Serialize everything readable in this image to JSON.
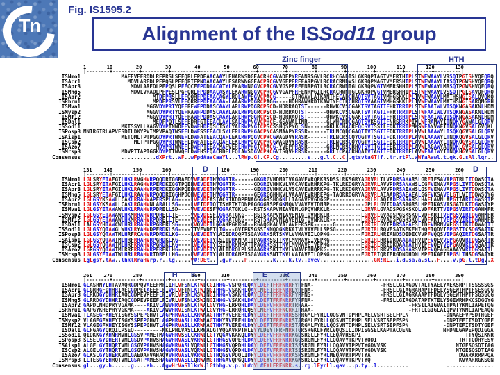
{
  "header": {
    "fig_label": "Fig. IS1595.2",
    "title_prefix": "Alignment of the IS",
    "title_italic": "Sod11",
    "title_suffix": " group",
    "logo_c": "C",
    "logo_tn": "Tn"
  },
  "colors": {
    "navy": "#283593",
    "high_consensus_red": "#e60d0d",
    "low_consensus_blue": "#1414dd",
    "neutral_black": "#1a1a1a",
    "logo_blue": "#4d78b7"
  },
  "alignment": {
    "names": [
      "ISNmo1",
      "ISAcr1",
      "ISApr3",
      "ISMng5",
      "ISApr2",
      "ISRhru1",
      "ISMva1",
      "ISMysp2",
      "ISMf12",
      "ISDal1",
      "ISSod11",
      "ISPosp3",
      "ISAisp1",
      "ISCsp2",
      "ISAzo7",
      "ISMrsp3",
      "Consensus"
    ],
    "blocks": [
      {
        "start": 1,
        "end": 130,
        "seg_widths": [
          55,
          75
        ],
        "seg_pads": [
          " ",
          "-"
        ],
        "first_seg_right_aligned": true,
        "boxes": [
          {
            "label": "Zinc finger",
            "from": 56,
            "to": 83,
            "placement": "outside"
          },
          {
            "label": "HTH",
            "from": 107,
            "to": 130,
            "placement": "outside"
          }
        ],
        "rows": [
          [
            "MAFEVFERDDLRFPRSLSEFQRLFPDEAACAAYLEHARWSDGE",
            "ACRHCGVADEPYRFANRSGVLRCRHCGADTSLGKRQPTAGTVMERTHTPLSTWFWAAYLVRSQTPGISHVQFQRQ"
          ],
          [
            "MDVLAREDLPFPQSLPEFQRIFPNDAACAAYLESARWNGGE",
            "ACPRCGVVGEPFRFEARPGVLRCRACRMDVSLGKRQPMAGTVMERSHTPLSTWFWAAYLIASQTPGWSHVQFQRQ"
          ],
          [
            "MDVLAREDLPFPQSLPEFQCFFPDDAACATYLEKARWNGG",
            "VCPRCGVVGSPFRFENRPGILRCRACRWNTGLGKRQPVGTVMERSHHIPLSTWFWAAYLMRSQTPGWSHVQFQRQ"
          ],
          [
            "MDVLVRADLPFPESLPGFQRLFPDDAACASYLEKARWNGG",
            "VCPRCGVVGAPFRFENRPGILRCRACRWNTGLGKRQPVGTVMERSHHIPLSTWFWAAYLVSSQTPGLSAVQFQRQ"
          ],
          [
            "MTDFPRSLLEFQQRFPDEAACAGYLRQLAWPEG",
            "VCPACG-GTRGAWLATKANTHECADCHAQTSVTAGTVMHGSKKLPLTVWFWAAYLMATHSNGISALQVQKQ"
          ],
          [
            "MPDFPRSVLEFQRRFPDEAACAA-LAAARWPDG",
            "RCPAGG-HDHRAWKRDTKAWTYECTKCHRQTSVAAGTVMHGSKKLPLTVWFWAAYLMATHSNGISARQMGRH"
          ],
          [
            "MGGVDYPRTYQEFREWFPDDASCAAYLARLRWPDG",
            "RCPSCD-HDRRAQTST--RHWKCVSCGAKTSVTAGTIFHRTRRTPLSTWFAAIWLVTSQKNGASAKNLHDM"
          ],
          [
            "MGGVDYPRTYQEFRAWFPDDASCAAYLARLRWPGG",
            "RCPSCD-HDRRAQTST--QHWKCVSCGAKTSVTAGTIFHRTRRTPLSTWFAAIWLVTSQKNGASAKNLHDM"
          ],
          [
            "MGGVDYPRTYQEFRAWFPDDASCAAYLARLRWPGG",
            "RCPSCD-HDRRAQTST--QHWKCVSCGAKTSVTAGTIFHRTRRTPLSTWFAAIWLVTSQKNGASAKNLHDM"
          ],
          [
            "MEDFPQTLSEFEDRFGTEEACLAYLSALRWPNG",
            "VCPHCE-GSAWALINR--GLWHCRDCGAQTSVKSGTIFNRSRRKPIKLWFRAMWYITNQKYGAWALGLQRV"
          ],
          [
            "MKTSSYLLKAGVDYPTNWDEFVDWFHDEQSCTSYLYALRWPNG",
            "ICPSCSSHQSPYQLSN--GKLKCHACRFQCSVTSSTLFDKTRRTPMKSWFAYVWFITNQKNGVSALGVQKL"
          ],
          [
            "MNIRGIRLAPVESDILDKYPVIMPVPAQDYPRTWSEFLDWFSSEEACLSYLERLRWPHG",
            "ACPNCASMAAPYRSSR--TRLMCQDCGAQTTVTSGTIFDKTRRTPLKVWLAAAWYLTSQKQGVSALGLQRV"
          ],
          [
            "METQMLTPTPGGDYPRTWNEFLDWFATEEACQAFLEKLRWPQG",
            "VCPRCGWAGDVYRASR--TRLNCRSCQYQGTVTSGTIFDKTRRTPLAVWLAAAWYLTNQKQGVSALGLQRV"
          ],
          [
            "MLTPTPGGDYPRTWNEFLDWFATEEACQAFLEKLRWPQG",
            "VCPRCGWAGDVYRASR--TRLNCRSCQYQGTVTSGTIFDKTRRTPLAVWLAAAWYLTNQKQGVSALGLQRV"
          ],
          [
            "MDYPRTWNEFLDWFPTEEACMAFVERLRWPHG",
            "TCPACG-YVEPPRASR--GRLMCRSCRHQTSVTTGTIFEKTRRTPLAVWLAGAWYATNQKLGVSALGLQRV"
          ],
          [
            "MDVPTIAPIGGKDYPTIWVQFLDWFHSEQACRDFLEQLAWSDG",
            "VCPKCGVISQVHRRSR--GRLICPACRHQATVTAGTIFDKTRRTELAVWFAAIWYITNQKHGVSALGLQRV"
          ],
          [
            "...........dXPrt..wF..wFpd#aaCaaYl...lRWp.G",
            "!.CP.Cg.........s...g.l.C..C..qtsvtaGT!f..tr.rtPl.wWfaAawl.t.qk.G.sAl.lqr."
          ]
        ]
      },
      {
        "start": 131,
        "end": 260,
        "seg_widths": [
          34,
          8,
          79,
          9
        ],
        "seg_pads": [
          "-",
          "-",
          "-",
          "-"
        ],
        "first_seg_right_aligned": false,
        "boxes": [
          {
            "label": "D",
            "from": 166,
            "to": 172,
            "placement": "inside"
          },
          {
            "label": "D",
            "from": 252,
            "to": 257,
            "placement": "inside"
          }
        ],
        "rows": [
          [
            "LGLSRYETAFGILHKLRVGHVRPQQDRIGGRAED",
            "VVEADETH",
            "VGGRTR------GKGRGVHDMAIVAGAVEVRQRKRSDSSLMKRKSGRYAGRVRLTLVPDRSAHARSLGRFIESAVAPGTRL",
            "ITDDWSGTA"
          ],
          [
            "LGLSRYETAFGILHKLRAGHVRPERDKIGGTPQE",
            "HVEVDETH",
            "VGGRTR------GDGRGVHHKVLVACAVEVRHRKPG-TKLDNRKDGRYAGRVRLAVVPDRSANAWSLCGFVENAVAPGSLI",
            "VTDDWSGTA"
          ],
          [
            "LGLSRYETAFGILHKLRAAHVRPERDKIGGKPQE",
            "HVEVDETH",
            "VGGRTR------GEGRGVHHKVLVSCAVEVRRRKPG-TKLDNRKDGRYAGRVRLAVVPDRSAEAWSLGSFVENAVAPGSLI",
            "VTDDWSGTA"
          ],
          [
            "LGLSRYETAFGILHKLRAAHVRPQQDRIGGHPDQ",
            "HVEVDETH",
            "VGGRTR------GEGRGGHHKVLVAAAVEVRHREPG-TAQDNRRDGRYAGRVRLAIAADRSAEAEALGGFVKSAVELGTLV",
            "ITDDWSGYG"
          ],
          [
            "LGLGSYKSAWLLCAKLRRAHVAPERSPLAG----",
            "LVEVDEAS",
            "IACRTKDDPPNAGGGGRSHQGKLLIAGAVEVGDGGP---------------GRLRLAQIADFSARARSLHAFLAVNLAPGTTA",
            "RTDGWSSTP"
          ],
          [
            "LGLGSYKSAWLLCAKLRGAHVNLARALLSG----",
            "LVEIDETQ",
            "IISYRTKIDNPAGGGGRSPEGKMQVVVAVEVIDNRP---------------GPLRLGVIDDASSAGRSLHPFIKASVASGATL",
            "KTDGWSAYP"
          ],
          [
            "LGLGSYETAWAWLHKLRRAHVRPDRELLSD----",
            "VVEVDESF",
            "VGGRATGKLG--RSTSKAPVMIAVENLGPQVNRKLR---------------LGRVRLGVADSPGSKSKQLVDFARTTVEPGSVI",
            "RTDGAHMFR"
          ],
          [
            "LGLGSYETAWAWLHKMRRAHVRPDRELLTE----",
            "VVEVDESF",
            "IGGRATGKG---RSTSKAPVMIAVENIGTQVNRKLR---------------LGRVRLGVADSPGSKSKQLVDFARTTVEPGSVI",
            "RTDGAHMFR"
          ],
          [
            "LGLGSYETAWAWLHKMRRAHVRPDRELLTE----",
            "VVEVDESF",
            "IGGRATGKG---RSTSKAPVMIAVENIGTQVNRKLR---------------LGRVRLGVADSPGSKSKQLVDFARTTVEPGSVI",
            "RTDGAHMFR"
          ],
          [
            "LALGSYHTAWCWLHRLRRAHVRPGRERLSG----",
            "CVQVDETL",
            "GGAKPGKRGA--RGAQGKALVAIAVEERSPK------G--------------IGRIRLGVIPDRSAEAESLTDFVMRNVVEGSII",
            "KTDDWAGTT"
          ],
          [
            "LGLGSYQTAWGLWHKLRYAHVDPERDKLSG----",
            "TIVEVDET",
            "LIG---GVIPKSGSSIKNQQGKRKAIVLVAVELLSPSG--------------FGRIRLRQVESATKEKEHIHQFIQDVIEPGSTI",
            "CSDGSAATK"
          ],
          [
            "LGLGSYQTAWTMLHRFRCAHVRPDRDKLKG----",
            "LVEVDETY",
            "LAISDRQQPTSGAVGRKSRTSKVLVVMAVEILQPKG---------------FGRIRLHRIANDSDEDECVVPFVQQSVEPGAQI",
            "RTDGSAATR"
          ],
          [
            "LGLGSYQTAWTMLHRFRRAHVRPGRDKLKG----",
            "LVEVDETY",
            "LSITDRKNPATTPAGRKSSTTKVLMVMAVEIVEPKG---------------FGRIRLRRIDRDAATATHVIPFVQEVVEPGAQV",
            "RTDGSAATR"
          ],
          [
            "LGLGSYQTAWTMLHRFRRAHVRPGRDKLKG----",
            "LVEVDETY",
            "LSITDRKNPATTPAGRKSSTTKVLMVMAVEIVEPKG---------------FGRIRLRRIDRDAATATHVIPFVQEVVEPGAQV",
            "RTDGSAATR"
          ],
          [
            "LGRGSYQTAWTMLRRFRRAHVRPEREKLHG----",
            "LVEVDETY",
            "LALTDRQLPLSTAAGRKSKTTKVLVWAVEIHQPKG----------------FGRIRLRRVSDDSAHARSVIPFVQEAGDAAAYV",
            "RTDGSAATL"
          ],
          [
            "LGLGSYETAWTWLHRLRRAHVRTDRELLHG----",
            "EVEVDETY",
            "LALTDRANPISGAVGRKSNTTKVLVAIAVEILQPKG---------------FGRIRIQRIERGDNDHDNLMPFIKAFIRPGSLI",
            "HSDGSAAYR"
          ],
          [
            "LgLgsY.tAw..lhklRraHVrp.r..lg.....",
            "V#!DEt..",
            "..g.r....P........k....k.lv..avev.................GR!RL..i.d.sa.a.sl..F....v.pG",
            ".l.tDg..X"
          ]
        ]
      },
      {
        "start": 261,
        "end": 390,
        "seg_widths": [
          28,
          10,
          16,
          14,
          62
        ],
        "seg_pads": [
          "-",
          "-",
          "-",
          "-",
          " "
        ],
        "first_seg_right_aligned": false,
        "boxes": [
          {
            "label": "H K",
            "labels": [
              "H",
              "K"
            ],
            "from": 287,
            "to": 298,
            "placement": "inside"
          },
          {
            "label": "E R",
            "labels": [
              "E",
              "R"
            ],
            "from": 315,
            "to": 328,
            "placement": "inside",
            "filled": true
          }
        ],
        "rows": [
          [
            "GLASRNYLHTAVAQRGDPQVAEEFMFII",
            "HLVFSNLKTW",
            "LCGIHHG-VSPQHLQA",
            "YLDEFTFRFNRRFY",
            "PFNA--FRSLLGIAGDVTALTYAELYAEKSRPTTSSSSSGS"
          ],
          [
            "GLGRRGFDHHRIAECGDPEIAEEFLFIV",
            "HLVFTNLKTW",
            "INGIHHG-VSAKHLQA",
            "YLNEFTFRFNRRLY",
            "PFNA--FRSLLGIAGRAHAPTFDELYSGEWTHPTFSESGCG"
          ],
          [
            "GLRKDGYDHHRIAQCGDPEVPEEFLFIV",
            "RLVFSNLKSW",
            "INGIHHG-VSAKHLQA",
            "YLDEFTFRFNRRFY",
            "PFNS--FRSLLGIAGRAAAPTFDGLYSGEWTHPTFSGSGCG"
          ],
          [
            "GLRRDGYDHHRIAQCGDPEVPEEFLFIV",
            "RLVFSNLKSW",
            "INGIHHG-VSAKHLDA",
            "YLDEFTFRFNRRFY",
            "PFNA--FRSLLGIAGDATAPTKTELYSGEWRHPKCSDGGYG"
          ],
          [
            "GAPDLNHDPRYVGAMA----AKIVLAWV",
            "HRVFSNLKTW",
            "ALGVYHG-LRPQHLDA",
            "YLDEFVFRFNRRTR",
            "HAA---FRSILAIGVAITPATYKMLIAPETQG"
          ],
          [
            "GAPGYKHEPHYVGKMA----AKIVLAWV",
            "HRVISNLKTW",
            "ALGVYHG-LRRQHLQS",
            "YLNEFVFRFNCRRI",
            "PHAA--FRTLLGIGLAIQPVTYNMLIAPEAQG"
          ],
          [
            "TLASEGFKHEYISGYSSPEPGHVTLAGP",
            "HRVASLLKRW",
            "NAGTHHYRVEREHLDY",
            "YLDEFTFRFNRRSS",
            "HRGMLFYRLLQQSVNTDPHPLAELVSRTSELFPLN-DNAAEFVPSDTHGEF"
          ],
          [
            "VLAGEGFKHEYISGYSSPEPGHVTLAGP",
            "HRVASLLKRW",
            "NAGTHHYRVEREHLDY",
            "YLDEFTFRFNRRST",
            "ARGMLFYRLLQQSVNTDPHPLSELVSRTSEPFSPN-DNPTEFITSDTYGEF"
          ],
          [
            "VLAGEGFKHEYISGYSSPEPGHVTLAGP",
            "HRVASLLKRW",
            "NAGTHHYRVEREHLDY",
            "YLDEFTFRFNRRST",
            "ARGMLFYRLLQQSVNTDPHPLSELVSRTSEPFSPN-DNPTEFITSDTYGEF"
          ],
          [
            "GLFGAGYQRQILPSEQ---------MKL",
            "PHLVASLLKR",
            "WALGTYQGAVRPTHLE",
            "YYLDEYTFRFNRRT",
            "GRSRGKLFYRLVQQSILIDPISGSELKAPTACQENENFDNLGAPEPQDIGGA"
          ],
          [
            "QIDKKGYKHNRMVHLGSSVPAMETMAGV",
            "HRVSSLCKRW",
            "LLGTYQGAVKAKQLDY",
            "YLDEFVFRFNRRKG",
            "DSRGLLFYRLLEQAVRSKPITTYQSIKNR"
          ],
          [
            "SLSELGYDHERTVMLGSDVPAHVSHAGV",
            "HRVASLVKRW",
            "LLGTHHGSVQPEHLDA",
            "YLDEFVFRFNRRTG",
            "GSRGMLFYRLLQQAVYTKPVTYQDITRTTQDHYESV"
          ],
          [
            "ALGELGYTHQRTVMLGSGVPAHVSHAGV",
            "HRVASLVQRW",
            "LLGTHHGSVQPDHLDA",
            "YLDEFVFRFNRRTS",
            "SSRGMLFYRLLQQAVVTPPVTYGDVVSKNTGESQSDTIAG"
          ],
          [
            "ALGELGYTHQRTVMLGSGVPAHVSHAGV",
            "HRVASLVQRW",
            "LLGTHHGSVQPDHLDA",
            "YLDEFVFRFNRRTS",
            "SSRGMLFYRLLQQAVVTPPVTYGDVVSKNTGESQSDTIAG"
          ],
          [
            "GLKSLGYGHERKVMLGAEDAHVAHAGVV",
            "HRVASLVKRW",
            "LLGTHQGSVPDQLIDF",
            "YLDEFVFRFNRRAS",
            "RSRGMLFYRLMEQAVRTPPVTYADVARKRRPPQA"
          ],
          [
            "LLTESGYEHRQTVMLGSATPAMESHAGV",
            "HRVASLLQRW",
            "AMGTHHGAVQPGQLDY",
            "YLDEYVFRFNRRKG",
            "KSRGLLFYRLLQQAVVTKPVTYQKVVARRGKSGN"
          ],
          [
            "gl...gy.h......g....ah...#gv",
            "HrVaSllkrW",
            ".lGthhg.v.p.hL#o",
            "YL#EXLFRFNRR.s",
            "..rg.lFyrLl.qav...p.ty..l........................."
          ]
        ]
      }
    ]
  }
}
